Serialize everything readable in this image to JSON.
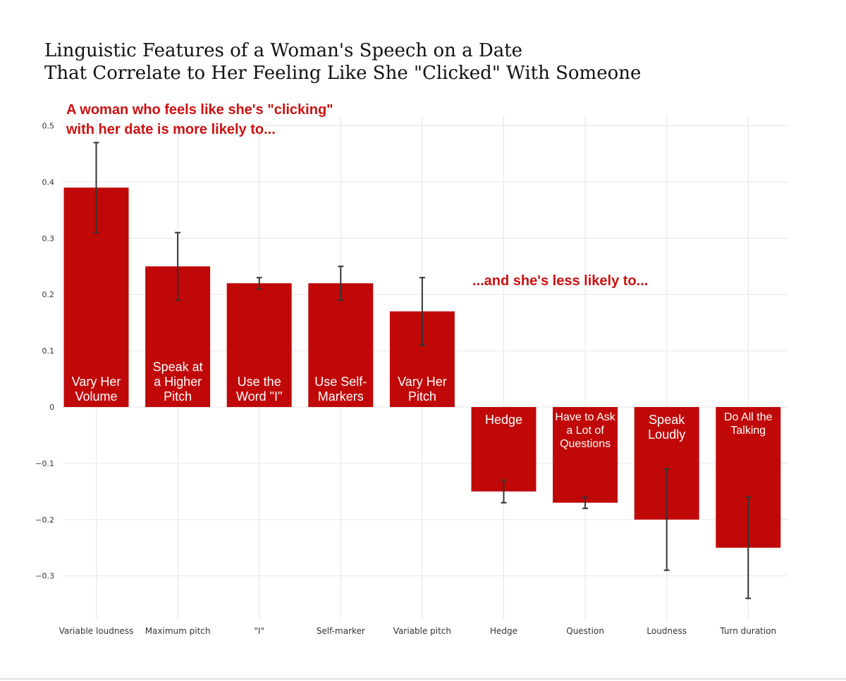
{
  "chart_data": {
    "type": "bar",
    "title_lines": [
      "Linguistic Features of a Woman's Speech on a Date",
      "That Correlate to Her Feeling Like She \"Clicked\" With Someone"
    ],
    "annotation_positive": [
      "A woman who feels like she's \"clicking\"",
      "with her date is more likely to..."
    ],
    "annotation_negative": "...and she's less likely to...",
    "categories": [
      "Variable loudness",
      "Maximum pitch",
      "\"I\"",
      "Self-marker",
      "Variable pitch",
      "Hedge",
      "Question",
      "Loudness",
      "Turn duration"
    ],
    "values": [
      0.39,
      0.25,
      0.22,
      0.22,
      0.17,
      -0.15,
      -0.17,
      -0.2,
      -0.25
    ],
    "error_low": [
      0.31,
      0.19,
      0.21,
      0.19,
      0.11,
      -0.17,
      -0.18,
      -0.29,
      -0.34
    ],
    "error_high": [
      0.47,
      0.31,
      0.23,
      0.25,
      0.23,
      -0.13,
      -0.16,
      -0.11,
      -0.16
    ],
    "bar_labels": [
      [
        "Vary Her",
        "Volume"
      ],
      [
        "Speak at",
        "a Higher",
        "Pitch"
      ],
      [
        "Use the",
        "Word \"I\""
      ],
      [
        "Use Self-",
        "Markers"
      ],
      [
        "Vary Her",
        "Pitch"
      ],
      [
        "Hedge"
      ],
      [
        "Have to Ask",
        "a Lot of",
        "Questions"
      ],
      [
        "Speak",
        "Loudly"
      ],
      [
        "Do All the",
        "Talking"
      ]
    ],
    "yticks": [
      0.5,
      0.4,
      0.3,
      0.2,
      0.1,
      0,
      -0.1,
      -0.2,
      -0.3
    ],
    "ytick_labels": [
      "0.5",
      "0.4",
      "0.3",
      "0.2",
      "0.1",
      "0",
      "−0.1",
      "−0.2",
      "−0.3"
    ],
    "ylim": [
      -0.37,
      0.5
    ],
    "xlabel": "",
    "ylabel": "",
    "grid": true,
    "colors": {
      "bar": "#c00808",
      "annotation": "#cc1111",
      "errorbar": "#333333"
    }
  }
}
